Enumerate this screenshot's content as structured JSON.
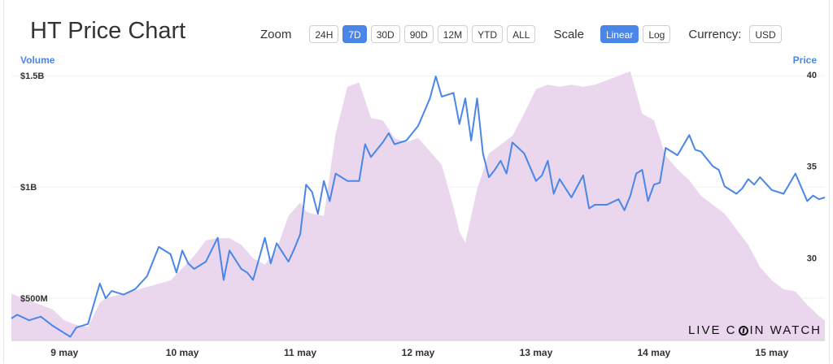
{
  "title": "HT Price Chart",
  "toolbar": {
    "zoom_label": "Zoom",
    "zoom_options": [
      "24H",
      "7D",
      "30D",
      "90D",
      "12M",
      "YTD",
      "ALL"
    ],
    "zoom_selected": "7D",
    "scale_label": "Scale",
    "scale_options": [
      "Linear",
      "Log"
    ],
    "scale_selected": "Linear",
    "currency_label": "Currency:",
    "currency_value": "USD"
  },
  "brand": {
    "left": "LIVE C",
    "right": "IN WATCH"
  },
  "colors": {
    "price_line": "#4a86e8",
    "volume_area": "#ead7ee",
    "active_button": "#4a86e8"
  },
  "chart_data": {
    "type": "line",
    "y_left_label": "Volume",
    "y_right_label": "Price",
    "y_left_ticks": [
      "$500M",
      "$1B",
      "$1.5B"
    ],
    "y_left_tick_values": [
      500000000,
      1000000000,
      1500000000
    ],
    "y_right_ticks": [
      "30",
      "35",
      "40"
    ],
    "y_right_tick_values": [
      30,
      35,
      40
    ],
    "x_ticks": [
      "9 may",
      "10 may",
      "11 may",
      "12 may",
      "13 may",
      "14 may",
      "15 may"
    ],
    "x_range_days": [
      8.55,
      15.45
    ],
    "price_range": [
      25.5,
      40.3
    ],
    "volume_range": [
      310000000,
      1530000000
    ],
    "legend": "none",
    "grid": "horizontal",
    "series": [
      {
        "name": "Price",
        "axis": "right",
        "x": [
          8.55,
          8.6,
          8.7,
          8.8,
          8.9,
          9.0,
          9.05,
          9.1,
          9.2,
          9.3,
          9.35,
          9.4,
          9.5,
          9.6,
          9.7,
          9.8,
          9.9,
          9.95,
          10.0,
          10.05,
          10.1,
          10.2,
          10.3,
          10.35,
          10.4,
          10.45,
          10.5,
          10.55,
          10.6,
          10.7,
          10.75,
          10.8,
          10.9,
          10.95,
          11.0,
          11.05,
          11.1,
          11.15,
          11.2,
          11.25,
          11.3,
          11.4,
          11.5,
          11.55,
          11.6,
          11.7,
          11.75,
          11.8,
          11.9,
          12.0,
          12.1,
          12.15,
          12.2,
          12.3,
          12.35,
          12.4,
          12.45,
          12.5,
          12.55,
          12.6,
          12.65,
          12.7,
          12.75,
          12.8,
          12.9,
          13.0,
          13.05,
          13.1,
          13.15,
          13.2,
          13.3,
          13.4,
          13.45,
          13.5,
          13.6,
          13.7,
          13.75,
          13.8,
          13.85,
          13.9,
          13.95,
          14.0,
          14.05,
          14.1,
          14.2,
          14.3,
          14.35,
          14.4,
          14.5,
          14.55,
          14.6,
          14.7,
          14.75,
          14.8,
          14.85,
          14.9,
          15.0,
          15.1,
          15.2,
          15.3,
          15.35,
          15.4,
          15.45
        ],
        "y": [
          26.7,
          26.9,
          26.6,
          26.8,
          26.3,
          25.9,
          25.7,
          26.2,
          26.4,
          28.6,
          27.8,
          28.2,
          28.0,
          28.3,
          29.0,
          30.6,
          30.2,
          29.2,
          30.4,
          29.7,
          29.4,
          29.8,
          31.1,
          28.8,
          30.4,
          29.9,
          29.4,
          29.2,
          28.8,
          31.1,
          29.7,
          30.8,
          29.8,
          30.5,
          31.3,
          34.0,
          33.6,
          32.4,
          34.2,
          33.1,
          34.6,
          34.2,
          34.2,
          36.2,
          35.5,
          36.3,
          36.8,
          36.2,
          36.4,
          37.2,
          38.7,
          39.9,
          38.8,
          39.0,
          37.3,
          38.7,
          36.4,
          38.7,
          35.7,
          34.4,
          34.8,
          35.3,
          34.6,
          36.3,
          35.7,
          34.2,
          34.5,
          35.3,
          33.5,
          34.3,
          33.3,
          34.5,
          32.7,
          32.9,
          32.9,
          33.2,
          32.6,
          33.4,
          34.6,
          34.8,
          33.1,
          34.0,
          34.1,
          36.0,
          35.6,
          36.7,
          35.9,
          35.8,
          35.0,
          34.8,
          33.9,
          33.5,
          33.8,
          34.3,
          34.0,
          34.4,
          33.7,
          33.5,
          34.6,
          33.1,
          33.4,
          33.2,
          33.3
        ]
      },
      {
        "name": "Volume",
        "axis": "left",
        "x": [
          8.55,
          8.6,
          8.7,
          8.8,
          8.9,
          9.0,
          9.1,
          9.2,
          9.3,
          9.35,
          9.5,
          9.7,
          9.9,
          10.1,
          10.2,
          10.3,
          10.4,
          10.5,
          10.6,
          10.7,
          10.8,
          10.9,
          11.0,
          11.05,
          11.1,
          11.2,
          11.3,
          11.4,
          11.5,
          11.6,
          11.7,
          11.8,
          11.9,
          12.0,
          12.1,
          12.2,
          12.3,
          12.35,
          12.4,
          12.5,
          12.6,
          12.7,
          12.8,
          12.9,
          13.0,
          13.1,
          13.2,
          13.3,
          13.4,
          13.5,
          13.6,
          13.7,
          13.8,
          13.9,
          14.0,
          14.1,
          14.2,
          14.3,
          14.4,
          14.5,
          14.6,
          14.7,
          14.8,
          14.9,
          15.0,
          15.1,
          15.2,
          15.3,
          15.4,
          15.45
        ],
        "y": [
          520000000,
          510000000,
          490000000,
          470000000,
          450000000,
          400000000,
          380000000,
          370000000,
          480000000,
          500000000,
          520000000,
          550000000,
          580000000,
          690000000,
          760000000,
          770000000,
          770000000,
          740000000,
          680000000,
          650000000,
          720000000,
          870000000,
          930000000,
          890000000,
          880000000,
          870000000,
          1240000000,
          1450000000,
          1470000000,
          1310000000,
          1300000000,
          1220000000,
          1200000000,
          1220000000,
          1160000000,
          1100000000,
          910000000,
          800000000,
          750000000,
          990000000,
          1150000000,
          1190000000,
          1230000000,
          1330000000,
          1440000000,
          1460000000,
          1450000000,
          1460000000,
          1450000000,
          1460000000,
          1480000000,
          1500000000,
          1520000000,
          1330000000,
          1300000000,
          1140000000,
          1080000000,
          1030000000,
          960000000,
          920000000,
          880000000,
          810000000,
          740000000,
          640000000,
          580000000,
          540000000,
          530000000,
          470000000,
          420000000,
          400000000
        ]
      }
    ]
  }
}
